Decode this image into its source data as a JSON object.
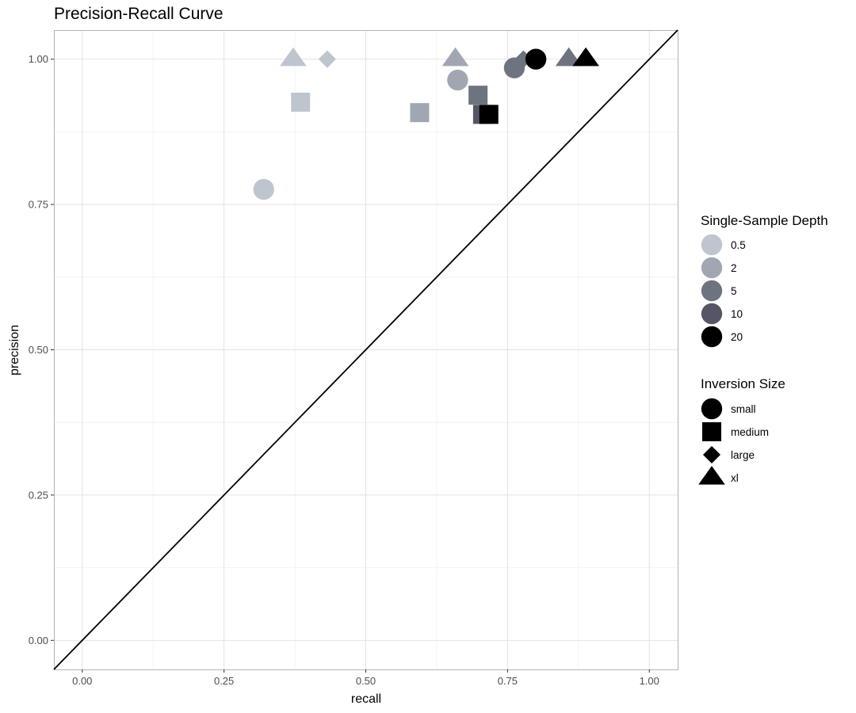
{
  "chart_data": {
    "type": "scatter",
    "title": "Precision-Recall Curve",
    "xlabel": "recall",
    "ylabel": "precision",
    "xlim": [
      -0.05,
      1.05
    ],
    "ylim": [
      -0.05,
      1.05
    ],
    "xticks": [
      "0.00",
      "0.25",
      "0.50",
      "0.75",
      "1.00"
    ],
    "yticks": [
      "0.00",
      "0.25",
      "0.50",
      "0.75",
      "1.00"
    ],
    "xtick_values": [
      0,
      0.25,
      0.5,
      0.75,
      1.0
    ],
    "ytick_values": [
      0,
      0.25,
      0.5,
      0.75,
      1.0
    ],
    "reference_line": {
      "slope": 1,
      "intercept": 0,
      "color": "#000000"
    },
    "grid": true,
    "legend_position": "right",
    "depth_legend": {
      "title": "Single-Sample Depth",
      "levels": [
        {
          "label": "0.5",
          "color": "#bfc5cf"
        },
        {
          "label": "2",
          "color": "#a0a7b2"
        },
        {
          "label": "5",
          "color": "#6d7480"
        },
        {
          "label": "10",
          "color": "#555567"
        },
        {
          "label": "20",
          "color": "#000000"
        }
      ]
    },
    "shape_legend": {
      "title": "Inversion Size",
      "levels": [
        {
          "label": "small",
          "shape": "circle"
        },
        {
          "label": "medium",
          "shape": "square"
        },
        {
          "label": "large",
          "shape": "diamond"
        },
        {
          "label": "xl",
          "shape": "triangle"
        }
      ]
    },
    "points": [
      {
        "recall": 0.32,
        "precision": 0.776,
        "depth": "0.5",
        "size": "small"
      },
      {
        "recall": 0.385,
        "precision": 0.926,
        "depth": "0.5",
        "size": "medium"
      },
      {
        "recall": 0.432,
        "precision": 1.0,
        "depth": "0.5",
        "size": "large"
      },
      {
        "recall": 0.372,
        "precision": 1.0,
        "depth": "0.5",
        "size": "xl"
      },
      {
        "recall": 0.662,
        "precision": 0.964,
        "depth": "2",
        "size": "small"
      },
      {
        "recall": 0.595,
        "precision": 0.908,
        "depth": "2",
        "size": "medium"
      },
      {
        "recall": 0.658,
        "precision": 1.0,
        "depth": "2",
        "size": "xl"
      },
      {
        "recall": 0.762,
        "precision": 0.985,
        "depth": "5",
        "size": "small"
      },
      {
        "recall": 0.698,
        "precision": 0.938,
        "depth": "5",
        "size": "medium"
      },
      {
        "recall": 0.778,
        "precision": 1.0,
        "depth": "5",
        "size": "large"
      },
      {
        "recall": 0.858,
        "precision": 1.0,
        "depth": "5",
        "size": "xl"
      },
      {
        "recall": 0.706,
        "precision": 0.905,
        "depth": "10",
        "size": "medium"
      },
      {
        "recall": 0.8,
        "precision": 1.0,
        "depth": "20",
        "size": "small"
      },
      {
        "recall": 0.717,
        "precision": 0.905,
        "depth": "20",
        "size": "medium"
      },
      {
        "recall": 0.888,
        "precision": 1.0,
        "depth": "20",
        "size": "xl"
      }
    ]
  }
}
